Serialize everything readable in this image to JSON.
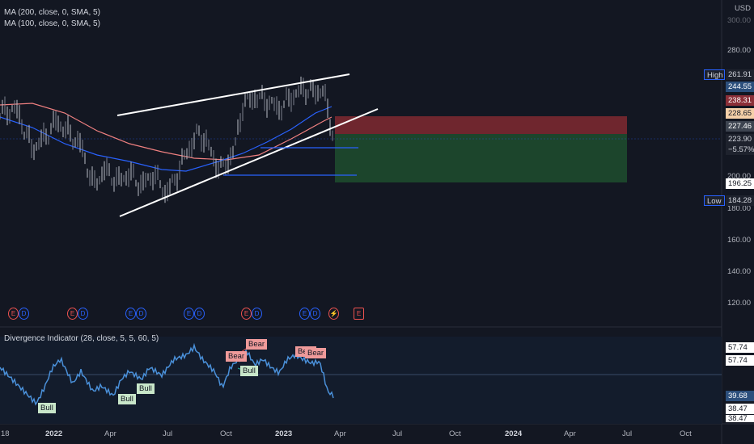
{
  "legend": {
    "ma200": "MA (200, close, 0, SMA, 5)",
    "ma100": "MA (100, close, 0, SMA, 5)",
    "indicator": "Divergence Indicator (28, close, 5, 5, 60, 5)"
  },
  "price_axis": {
    "currency": "USD",
    "ticks": [
      "300.00",
      "280.00",
      "200.00",
      "180.00",
      "160.00",
      "140.00",
      "120.00"
    ]
  },
  "price_tags": {
    "high_label": "High",
    "high_value": "261.91",
    "t1": "244.55",
    "t2": "238.31",
    "t3": "228.65",
    "t4": "227.46",
    "t5": "223.90",
    "t6": "−5.57%",
    "t7": "196.25",
    "low_label": "Low",
    "low_value": "184.28"
  },
  "osc_axis": {
    "a": "57.74",
    "b": "57.74",
    "c": "39.68",
    "d": "38.47",
    "e": "38.47"
  },
  "time_axis": [
    "18",
    "2022",
    "Apr",
    "Jul",
    "Oct",
    "2023",
    "Apr",
    "Jul",
    "Oct",
    "2024",
    "Apr",
    "Jul",
    "Oct"
  ],
  "signals": {
    "bull": "Bull",
    "bear": "Bear"
  },
  "events": {
    "e": "E",
    "d": "D",
    "flash": "⚡"
  },
  "colors": {
    "bg": "#131722",
    "ma200": "#f08080",
    "ma100": "#2962ff",
    "price": "#9aa0aa",
    "trendline": "#ffffff",
    "risk": "#7a2830",
    "reward": "#1e4a2e",
    "osc": "#4a90d9"
  }
}
